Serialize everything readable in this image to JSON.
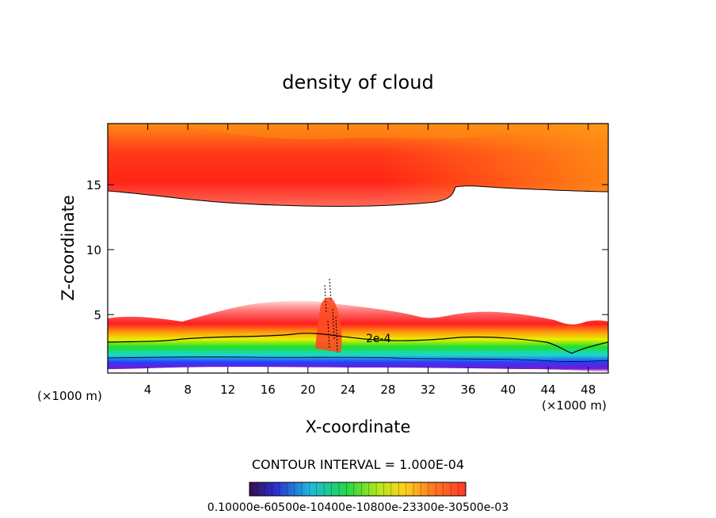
{
  "chart_data": {
    "type": "heatmap",
    "title": "density of cloud",
    "xlabel": "X-coordinate",
    "ylabel": "Z-coordinate",
    "x_unit_left": "(×1000 m)",
    "x_unit_right": "(×1000 m)",
    "xlim": [
      0,
      50
    ],
    "ylim": [
      0.5,
      19.7
    ],
    "x_ticks": [
      4,
      8,
      12,
      16,
      20,
      24,
      28,
      32,
      36,
      40,
      44,
      48
    ],
    "x_tick_labels": [
      "4",
      "8",
      "12",
      "16",
      "20",
      "24",
      "28",
      "32",
      "36",
      "40",
      "44",
      "48"
    ],
    "y_ticks": [
      5,
      10,
      15
    ],
    "y_tick_labels": [
      "5",
      "10",
      "15"
    ],
    "contour_interval_text": "CONTOUR INTERVAL = 1.000E-04",
    "contour_label": "2e-4",
    "colorbar_text": "0.10000e-60500e-10400e-10800e-23300e-30500e-03",
    "colorbar_min": 0.0001,
    "colorbar_max": 0.003,
    "colors": {
      "upper_red": "#ff2a1a",
      "upper_orange": "#ff8a14",
      "band_yellow": "#e8f000",
      "band_green": "#22e02a",
      "band_cyan": "#18d8d0",
      "band_blue": "#2a3cff",
      "band_purple": "#7a18c8"
    }
  }
}
